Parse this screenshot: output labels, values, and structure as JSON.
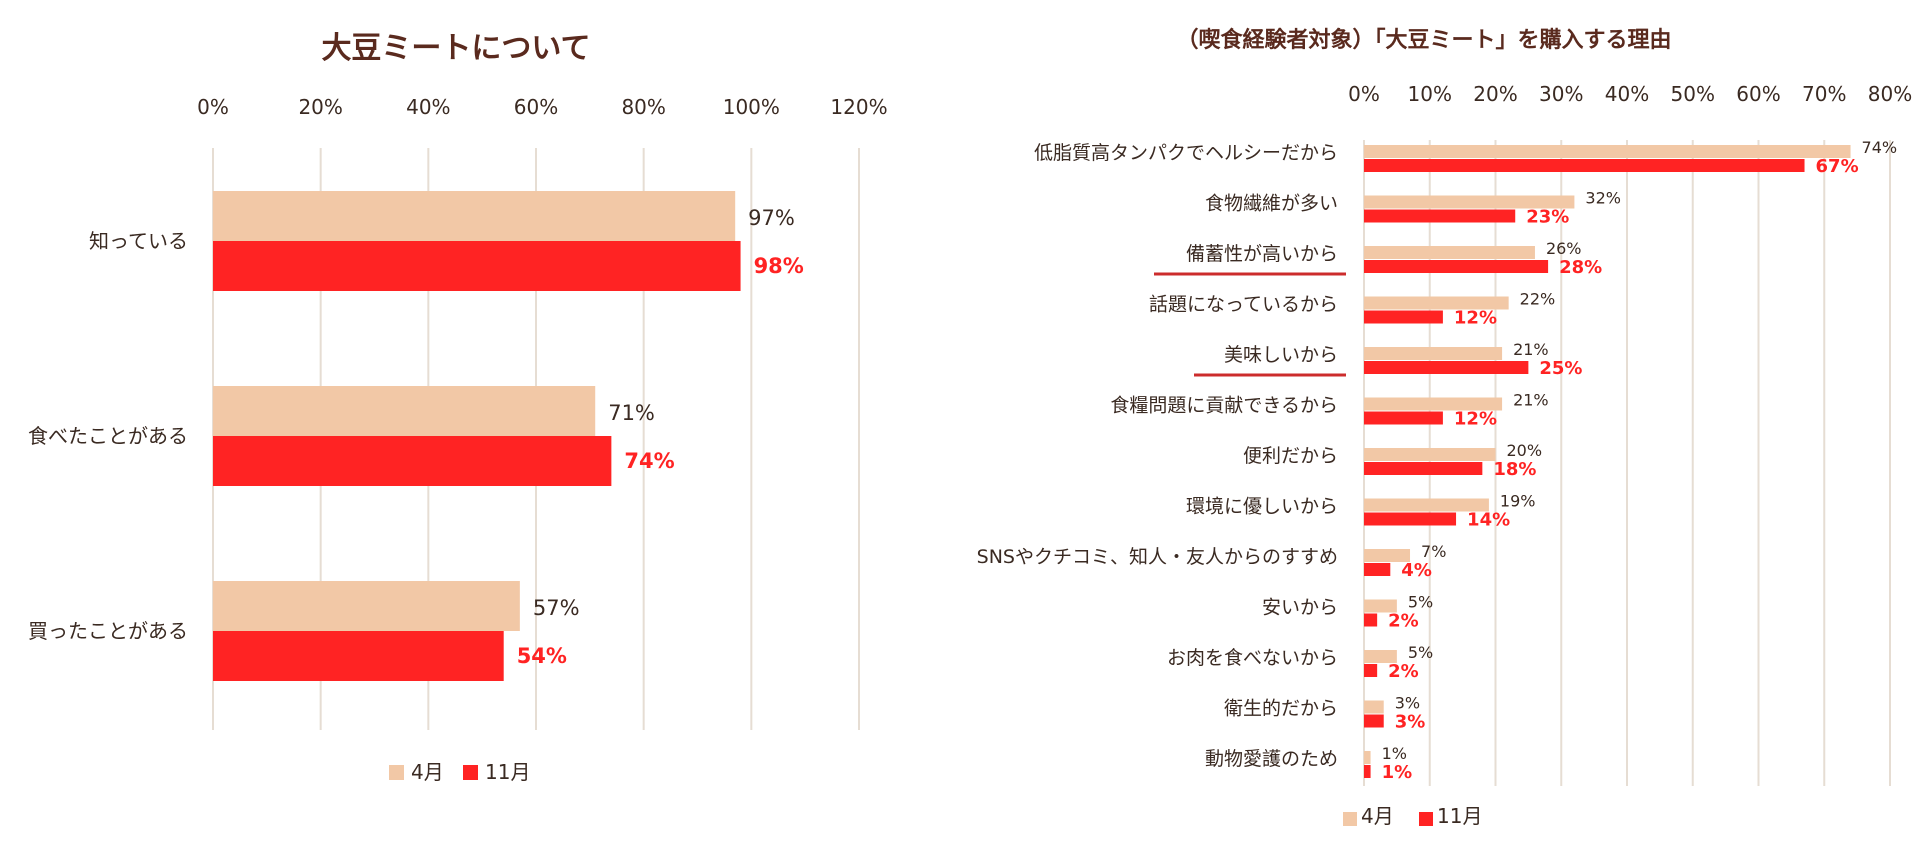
{
  "colors": {
    "april": "#F2C8A6",
    "november": "#FF2323",
    "grid": "#E6DDD3",
    "text": "#3A2A22",
    "title": "#5A2A1E",
    "highlight": "#CC2C2C"
  },
  "chart_data": [
    {
      "type": "bar",
      "orientation": "horizontal",
      "title": "大豆ミートについて",
      "categories": [
        "知っている",
        "食べたことがある",
        "買ったことがある"
      ],
      "series": [
        {
          "name": "4月",
          "values": [
            97,
            71,
            57
          ],
          "labels": [
            "97%",
            "71%",
            "57%"
          ]
        },
        {
          "name": "11月",
          "values": [
            98,
            74,
            54
          ],
          "labels": [
            "98%",
            "74%",
            "54%"
          ]
        }
      ],
      "xlim": [
        0,
        120
      ],
      "ticks": [
        "0%",
        "20%",
        "40%",
        "60%",
        "80%",
        "100%",
        "120%"
      ],
      "grid": true,
      "legend": "bottom"
    },
    {
      "type": "bar",
      "orientation": "horizontal",
      "title": "（喫食経験者対象）「大豆ミート」を購入する理由",
      "categories": [
        "低脂質高タンパクでヘルシーだから",
        "食物繊維が多い",
        "備蓄性が高いから",
        "話題になっているから",
        "美味しいから",
        "食糧問題に貢献できるから",
        "便利だから",
        "環境に優しいから",
        "SNSやクチコミ、知人・友人からのすすめ",
        "安いから",
        "お肉を食べないから",
        "衛生的だから",
        "動物愛護のため"
      ],
      "highlighted": [
        "備蓄性が高いから",
        "美味しいから"
      ],
      "series": [
        {
          "name": "4月",
          "values": [
            74,
            32,
            26,
            22,
            21,
            21,
            20,
            19,
            7,
            5,
            5,
            3,
            1
          ],
          "labels": [
            "74%",
            "32%",
            "26%",
            "22%",
            "21%",
            "21%",
            "20%",
            "19%",
            "7%",
            "5%",
            "5%",
            "3%",
            "1%"
          ]
        },
        {
          "name": "11月",
          "values": [
            67,
            23,
            28,
            12,
            25,
            12,
            18,
            14,
            4,
            2,
            2,
            3,
            1
          ],
          "labels": [
            "67%",
            "23%",
            "28%",
            "12%",
            "25%",
            "12%",
            "18%",
            "14%",
            "4%",
            "2%",
            "2%",
            "3%",
            "1%"
          ]
        }
      ],
      "xlim": [
        0,
        80
      ],
      "ticks": [
        "0%",
        "10%",
        "20%",
        "30%",
        "40%",
        "50%",
        "60%",
        "70%",
        "80%"
      ],
      "grid": true,
      "legend": "bottom"
    }
  ]
}
